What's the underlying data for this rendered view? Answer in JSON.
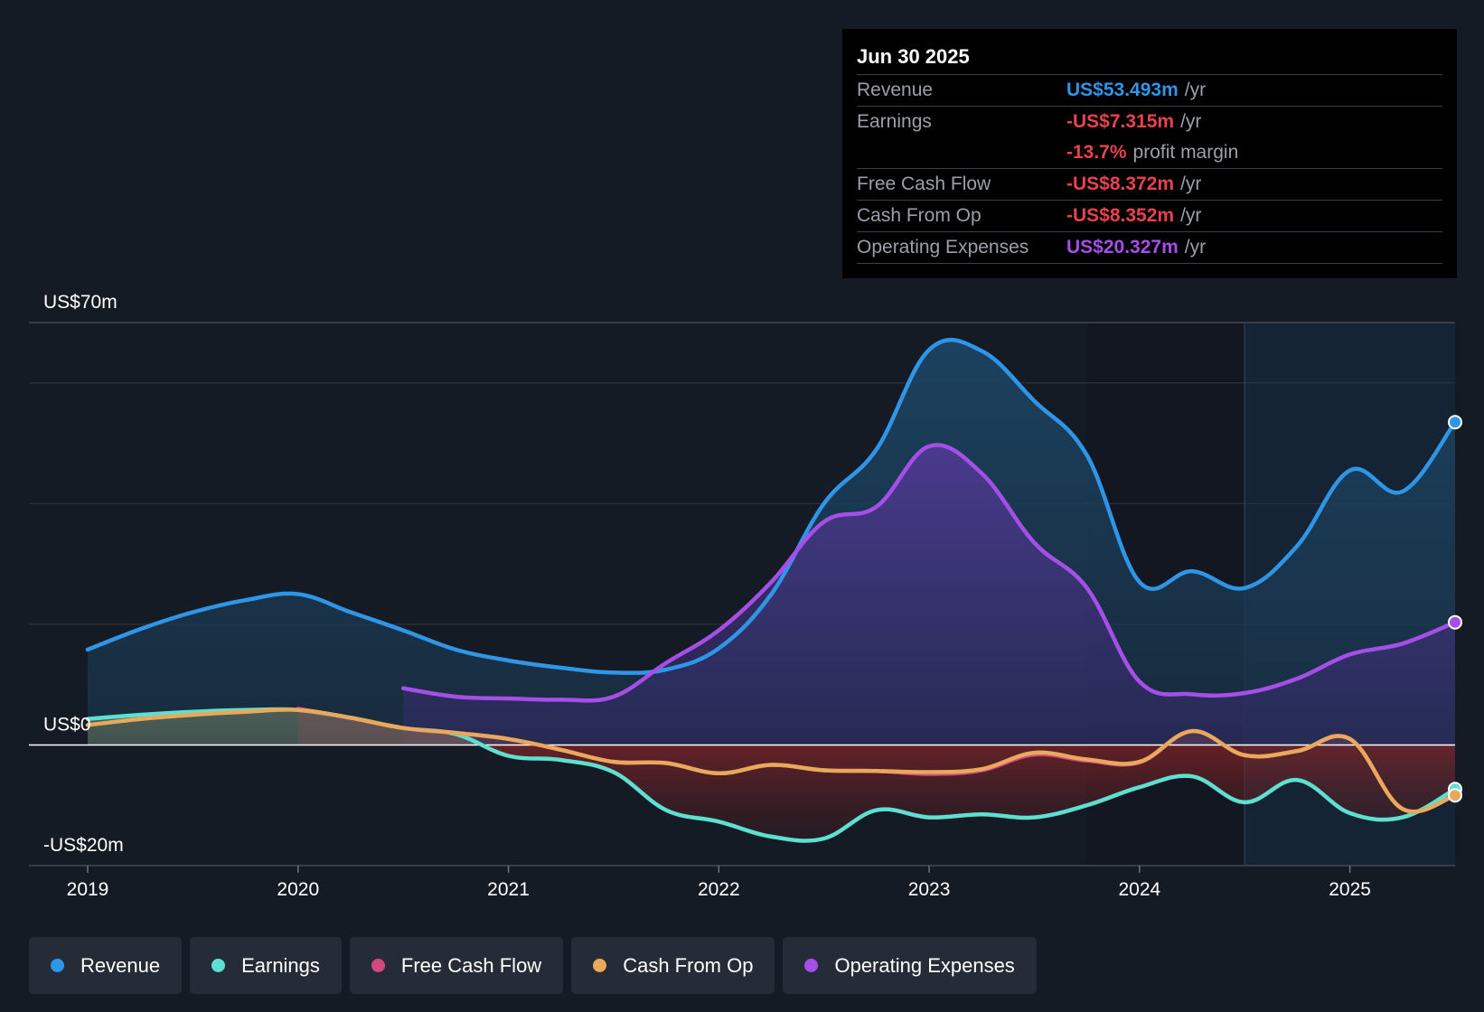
{
  "tooltip": {
    "date": "Jun 30 2025",
    "rows": [
      {
        "label": "Revenue",
        "value": "US$53.493m",
        "unit": "/yr",
        "color": "#2f95e6"
      },
      {
        "label": "Earnings",
        "value": "-US$7.315m",
        "unit": "/yr",
        "color": "#e8424d"
      },
      {
        "label": "",
        "value": "-13.7%",
        "unit": "profit margin",
        "color": "#e8424d"
      },
      {
        "label": "Free Cash Flow",
        "value": "-US$8.372m",
        "unit": "/yr",
        "color": "#e8424d"
      },
      {
        "label": "Cash From Op",
        "value": "-US$8.352m",
        "unit": "/yr",
        "color": "#e8424d"
      },
      {
        "label": "Operating Expenses",
        "value": "US$20.327m",
        "unit": "/yr",
        "color": "#a64fe8"
      }
    ]
  },
  "legend": [
    {
      "label": "Revenue",
      "color": "#2f95e6"
    },
    {
      "label": "Earnings",
      "color": "#5ee0d0"
    },
    {
      "label": "Free Cash Flow",
      "color": "#d0497f"
    },
    {
      "label": "Cash From Op",
      "color": "#e8a95a"
    },
    {
      "label": "Operating Expenses",
      "color": "#a64fe8"
    }
  ],
  "chart_data": {
    "type": "line",
    "title": "",
    "y_axis_labels": [
      "US$70m",
      "US$0",
      "-US$20m"
    ],
    "ylim": [
      -20,
      70
    ],
    "x_ticks": [
      "2019",
      "2020",
      "2021",
      "2022",
      "2023",
      "2024",
      "2025"
    ],
    "xlim": [
      2019.0,
      2025.5
    ],
    "forecast_shade_start": 2024.5,
    "series": [
      {
        "name": "Revenue",
        "color": "#2f95e6",
        "points": [
          [
            2019.0,
            15.8
          ],
          [
            2019.25,
            19.2
          ],
          [
            2019.5,
            22.0
          ],
          [
            2019.75,
            24.0
          ],
          [
            2020.0,
            25.0
          ],
          [
            2020.25,
            22.0
          ],
          [
            2020.5,
            19.0
          ],
          [
            2020.75,
            15.8
          ],
          [
            2021.0,
            14.0
          ],
          [
            2021.25,
            12.8
          ],
          [
            2021.5,
            12.0
          ],
          [
            2021.75,
            12.5
          ],
          [
            2022.0,
            16.0
          ],
          [
            2022.25,
            25.0
          ],
          [
            2022.5,
            40.0
          ],
          [
            2022.75,
            49.0
          ],
          [
            2023.0,
            65.5
          ],
          [
            2023.25,
            65.3
          ],
          [
            2023.5,
            57.0
          ],
          [
            2023.75,
            48.0
          ],
          [
            2024.0,
            27.0
          ],
          [
            2024.25,
            28.8
          ],
          [
            2024.5,
            26.0
          ],
          [
            2024.75,
            33.0
          ],
          [
            2025.0,
            45.5
          ],
          [
            2025.25,
            42.0
          ],
          [
            2025.5,
            53.493
          ]
        ]
      },
      {
        "name": "Operating Expenses",
        "color": "#a64fe8",
        "start": 2020.5,
        "points": [
          [
            2020.5,
            9.4
          ],
          [
            2020.75,
            8.0
          ],
          [
            2021.0,
            7.7
          ],
          [
            2021.25,
            7.5
          ],
          [
            2021.5,
            8.0
          ],
          [
            2021.75,
            13.6
          ],
          [
            2022.0,
            19.0
          ],
          [
            2022.25,
            27.0
          ],
          [
            2022.5,
            37.0
          ],
          [
            2022.75,
            39.5
          ],
          [
            2023.0,
            49.5
          ],
          [
            2023.25,
            45.0
          ],
          [
            2023.5,
            33.5
          ],
          [
            2023.75,
            26.0
          ],
          [
            2024.0,
            10.5
          ],
          [
            2024.25,
            8.4
          ],
          [
            2024.5,
            8.6
          ],
          [
            2024.75,
            11.0
          ],
          [
            2025.0,
            15.0
          ],
          [
            2025.25,
            16.8
          ],
          [
            2025.5,
            20.327
          ]
        ]
      },
      {
        "name": "Earnings",
        "color": "#5ee0d0",
        "points": [
          [
            2019.0,
            4.3
          ],
          [
            2019.25,
            5.0
          ],
          [
            2019.5,
            5.5
          ],
          [
            2019.75,
            5.8
          ],
          [
            2020.0,
            5.8
          ],
          [
            2020.25,
            4.5
          ],
          [
            2020.5,
            2.8
          ],
          [
            2020.75,
            1.8
          ],
          [
            2021.0,
            -1.8
          ],
          [
            2021.25,
            -2.5
          ],
          [
            2021.5,
            -4.5
          ],
          [
            2021.75,
            -10.8
          ],
          [
            2022.0,
            -12.7
          ],
          [
            2022.25,
            -15.2
          ],
          [
            2022.5,
            -15.5
          ],
          [
            2022.75,
            -10.8
          ],
          [
            2023.0,
            -12.0
          ],
          [
            2023.25,
            -11.5
          ],
          [
            2023.5,
            -12.0
          ],
          [
            2023.75,
            -10.0
          ],
          [
            2024.0,
            -7.0
          ],
          [
            2024.25,
            -5.2
          ],
          [
            2024.5,
            -9.5
          ],
          [
            2024.75,
            -5.8
          ],
          [
            2025.0,
            -11.3
          ],
          [
            2025.25,
            -12.0
          ],
          [
            2025.5,
            -7.315
          ]
        ]
      },
      {
        "name": "Free Cash Flow",
        "color": "#d0497f",
        "start": 2020.0,
        "points": [
          [
            2020.0,
            6.0
          ],
          [
            2020.25,
            4.5
          ],
          [
            2020.5,
            2.8
          ],
          [
            2020.75,
            2.0
          ],
          [
            2021.0,
            1.0
          ],
          [
            2021.25,
            -0.8
          ],
          [
            2021.5,
            -2.8
          ],
          [
            2021.75,
            -3.0
          ],
          [
            2022.0,
            -4.7
          ],
          [
            2022.25,
            -3.3
          ],
          [
            2022.5,
            -4.2
          ],
          [
            2022.75,
            -4.3
          ],
          [
            2023.0,
            -4.8
          ],
          [
            2023.25,
            -4.2
          ],
          [
            2023.5,
            -1.6
          ],
          [
            2023.75,
            -2.6
          ],
          [
            2024.0,
            -2.9
          ],
          [
            2024.25,
            2.3
          ],
          [
            2024.5,
            -1.7
          ],
          [
            2024.75,
            -1.0
          ],
          [
            2025.0,
            1.0
          ],
          [
            2025.25,
            -10.6
          ],
          [
            2025.5,
            -8.372
          ]
        ]
      },
      {
        "name": "Cash From Op",
        "color": "#e8a95a",
        "points": [
          [
            2019.0,
            3.3
          ],
          [
            2019.25,
            4.3
          ],
          [
            2019.5,
            5.0
          ],
          [
            2019.75,
            5.5
          ],
          [
            2020.0,
            5.8
          ],
          [
            2020.25,
            4.5
          ],
          [
            2020.5,
            2.8
          ],
          [
            2020.75,
            2.0
          ],
          [
            2021.0,
            1.0
          ],
          [
            2021.25,
            -0.8
          ],
          [
            2021.5,
            -2.8
          ],
          [
            2021.75,
            -3.0
          ],
          [
            2022.0,
            -4.7
          ],
          [
            2022.25,
            -3.3
          ],
          [
            2022.5,
            -4.2
          ],
          [
            2022.75,
            -4.3
          ],
          [
            2023.0,
            -4.5
          ],
          [
            2023.25,
            -4.0
          ],
          [
            2023.5,
            -1.3
          ],
          [
            2023.75,
            -2.4
          ],
          [
            2024.0,
            -2.8
          ],
          [
            2024.25,
            2.3
          ],
          [
            2024.5,
            -1.7
          ],
          [
            2024.75,
            -1.0
          ],
          [
            2025.0,
            1.0
          ],
          [
            2025.25,
            -10.6
          ],
          [
            2025.5,
            -8.352
          ]
        ]
      }
    ]
  }
}
